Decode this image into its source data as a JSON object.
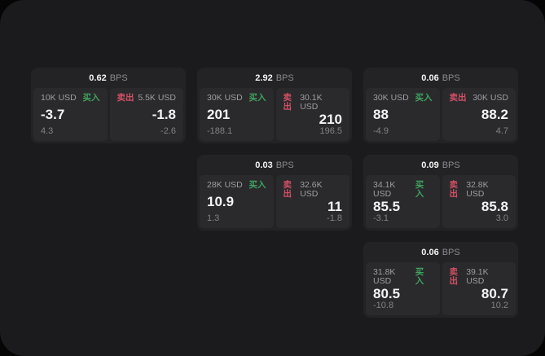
{
  "page": {
    "outer_bg": "#050506",
    "window_bg": "#1b1b1d"
  },
  "colors": {
    "card_bg": "#232325",
    "panel_bg": "#2a2a2d",
    "buy_green": "#3fa35d",
    "sell_red": "#d25064",
    "price_white": "#f4f4f5",
    "label_gray": "#9d9da2",
    "sub_gray": "#818187"
  },
  "labels": {
    "bps_unit": "BPS",
    "buy": "买入",
    "sell": "卖出"
  },
  "cards": [
    {
      "row": 1,
      "col": 1,
      "bps": "0.62",
      "buy": {
        "size": "10K USD",
        "price": "-3.7",
        "sub": "4.3"
      },
      "sell": {
        "size": "5.5K USD",
        "price": "-1.8",
        "sub": "-2.6"
      }
    },
    {
      "row": 1,
      "col": 2,
      "bps": "2.92",
      "buy": {
        "size": "30K USD",
        "price": "201",
        "sub": "-188.1"
      },
      "sell": {
        "size": "30.1K USD",
        "price": "210",
        "sub": "196.5"
      }
    },
    {
      "row": 1,
      "col": 3,
      "bps": "0.06",
      "buy": {
        "size": "30K USD",
        "price": "88",
        "sub": "-4.9"
      },
      "sell": {
        "size": "30K USD",
        "price": "88.2",
        "sub": "4.7"
      }
    },
    {
      "row": 2,
      "col": 2,
      "bps": "0.03",
      "buy": {
        "size": "28K USD",
        "price": "10.9",
        "sub": "1.3"
      },
      "sell": {
        "size": "32.6K USD",
        "price": "11",
        "sub": "-1.8"
      }
    },
    {
      "row": 2,
      "col": 3,
      "bps": "0.09",
      "buy": {
        "size": "34.1K USD",
        "price": "85.5",
        "sub": "-3.1"
      },
      "sell": {
        "size": "32.8K USD",
        "price": "85.8",
        "sub": "3.0"
      }
    },
    {
      "row": 3,
      "col": 3,
      "bps": "0.06",
      "buy": {
        "size": "31.8K USD",
        "price": "80.5",
        "sub": "-10.8"
      },
      "sell": {
        "size": "39.1K USD",
        "price": "80.7",
        "sub": "10.2"
      }
    }
  ]
}
